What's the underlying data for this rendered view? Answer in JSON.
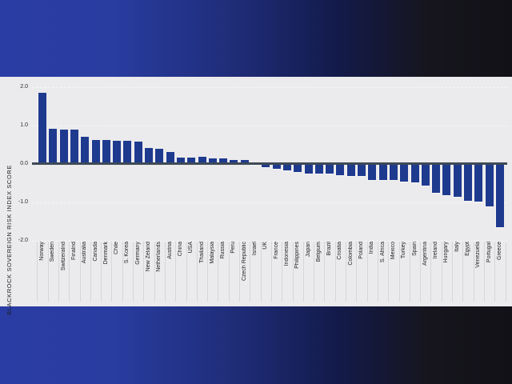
{
  "background": {
    "gradient_stops": [
      "#2a3da4",
      "#293ca0",
      "#1e2b74",
      "#131a4a",
      "#16151d",
      "#121117"
    ],
    "panel_bg": "#ebeaec"
  },
  "chart_data": {
    "type": "bar",
    "title": "",
    "ylabel": "BLACKROCK SOVEREIGN RISK INDEX SCORE",
    "xlabel": "",
    "ylim": [
      -2.0,
      2.0
    ],
    "yticks": [
      "2.0",
      "1.0",
      "0.0",
      "-1.0",
      "-2.0"
    ],
    "grid": "dashed horizontal at ticks",
    "legend": "none",
    "bar_color": "#1e3a8f",
    "zero_line_color": "#3e4a56",
    "categories": [
      "Norway",
      "Sweden",
      "Switzeralnd",
      "Finalnd",
      "Australia",
      "Canada",
      "Denmark",
      "Chile",
      "S. Korea",
      "Germany",
      "New Zeland",
      "Netherlands",
      "Austria",
      "China",
      "USA",
      "Thailand",
      "Malaysia",
      "Russia",
      "Peru",
      "Czech Republic",
      "Israel",
      "UK",
      "France",
      "Indonesia",
      "Philippines",
      "Japan",
      "Belgium",
      "Brazil",
      "Croatia",
      "Colombia",
      "Poland",
      "India",
      "S. Africa",
      "Mexico",
      "Turkey",
      "Spain",
      "Argentina",
      "Ireland",
      "Hungary",
      "Italy",
      "Egypt",
      "Venezuela",
      "Portugal",
      "Greece"
    ],
    "values": [
      1.85,
      0.9,
      0.88,
      0.89,
      0.7,
      0.62,
      0.62,
      0.6,
      0.59,
      0.58,
      0.4,
      0.39,
      0.31,
      0.16,
      0.16,
      0.17,
      0.13,
      0.14,
      0.09,
      0.1,
      -0.01,
      -0.09,
      -0.13,
      -0.17,
      -0.22,
      -0.25,
      -0.25,
      -0.27,
      -0.3,
      -0.33,
      -0.33,
      -0.42,
      -0.43,
      -0.43,
      -0.47,
      -0.49,
      -0.58,
      -0.75,
      -0.82,
      -0.87,
      -0.96,
      -0.99,
      -1.11,
      -1.65
    ]
  }
}
